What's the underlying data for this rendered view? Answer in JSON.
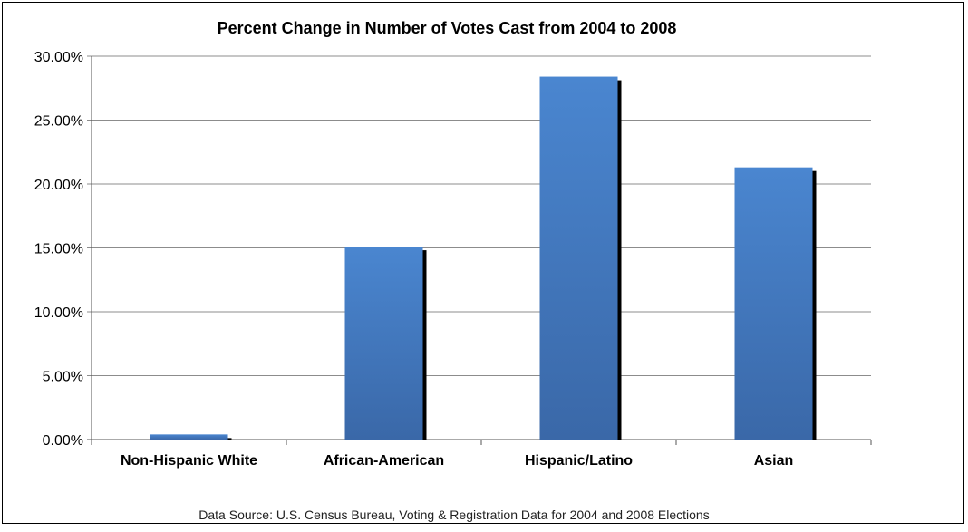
{
  "chart_data": {
    "type": "bar",
    "title": "Percent Change in Number of Votes Cast from 2004 to 2008",
    "categories": [
      "Non-Hispanic White",
      "African-American",
      "Hispanic/Latino",
      "Asian"
    ],
    "values": [
      0.4,
      15.1,
      28.4,
      21.3
    ],
    "ylim": [
      0,
      30
    ],
    "yticks": [
      "0.00%",
      "5.00%",
      "10.00%",
      "15.00%",
      "20.00%",
      "25.00%",
      "30.00%"
    ],
    "grid": true,
    "legend": "none",
    "bar_color": "#4a86d0",
    "bar_color_dark": "#3a68a8",
    "shadow_color": "#000000",
    "gridline_color": "#8c8c8c",
    "source_note": "Data Source: U.S. Census Bureau, Voting & Registration Data for 2004 and 2008 Elections"
  }
}
